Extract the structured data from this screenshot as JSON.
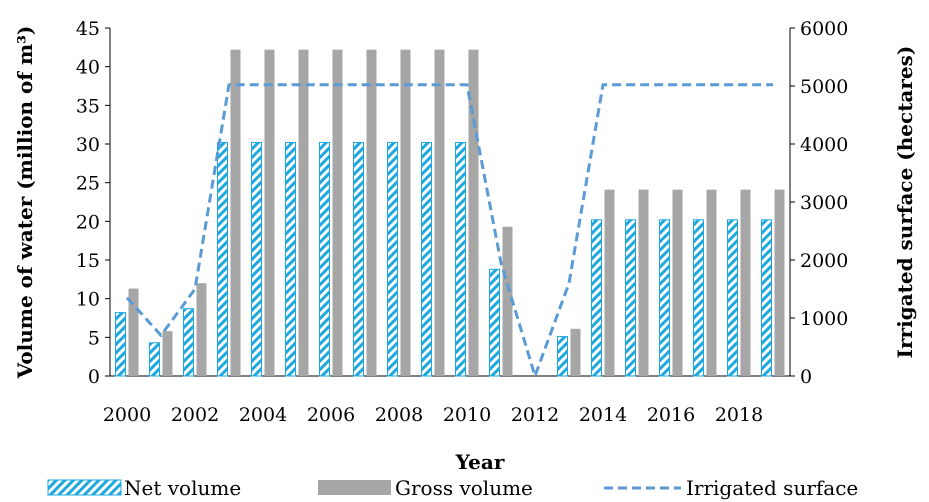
{
  "chart_data": {
    "type": "bar",
    "categories": [
      "2000",
      "2001",
      "2002",
      "2003",
      "2004",
      "2005",
      "2006",
      "2007",
      "2008",
      "2009",
      "2010",
      "2011",
      "2012",
      "2013",
      "2014",
      "2015",
      "2016",
      "2017",
      "2018",
      "2019"
    ],
    "x_tick_labels": [
      "2000",
      "2002",
      "2004",
      "2006",
      "2008",
      "2010",
      "2012",
      "2014",
      "2016",
      "2018"
    ],
    "series": [
      {
        "name": "Net volume",
        "type": "bar",
        "axis": "left",
        "pattern": "diagonal-hatch",
        "color": "#1fa8e0",
        "values": [
          8.2,
          4.3,
          8.7,
          30.2,
          30.2,
          30.2,
          30.2,
          30.2,
          30.2,
          30.2,
          30.2,
          13.8,
          0,
          5.1,
          20.2,
          20.2,
          20.2,
          20.2,
          20.2,
          20.2
        ]
      },
      {
        "name": "Gross volume",
        "type": "bar",
        "axis": "left",
        "color": "#a6a6a6",
        "values": [
          11.3,
          5.8,
          12.0,
          42.2,
          42.2,
          42.2,
          42.2,
          42.2,
          42.2,
          42.2,
          42.2,
          19.3,
          0,
          6.1,
          24.1,
          24.1,
          24.1,
          24.1,
          24.1,
          24.1
        ]
      },
      {
        "name": "Irrigated surface",
        "type": "line",
        "axis": "right",
        "style": "dashed",
        "color": "#5b9bd5",
        "values": [
          1350,
          700,
          1500,
          5020,
          5020,
          5020,
          5020,
          5020,
          5020,
          5020,
          5020,
          1950,
          0,
          1600,
          5020,
          5020,
          5020,
          5020,
          5020,
          5020
        ]
      }
    ],
    "xlabel": "Year",
    "ylabel": "Volume of water (million of m³)",
    "y2label": "Irrigated surface (hectares)",
    "ylim": [
      0,
      45
    ],
    "y_ticks": [
      "0",
      "5",
      "10",
      "15",
      "20",
      "25",
      "30",
      "35",
      "40",
      "45"
    ],
    "y2lim": [
      0,
      6000
    ],
    "y2_ticks": [
      "0",
      "1000",
      "2000",
      "3000",
      "4000",
      "5000",
      "6000"
    ],
    "grid": false,
    "legend": "bottom"
  }
}
